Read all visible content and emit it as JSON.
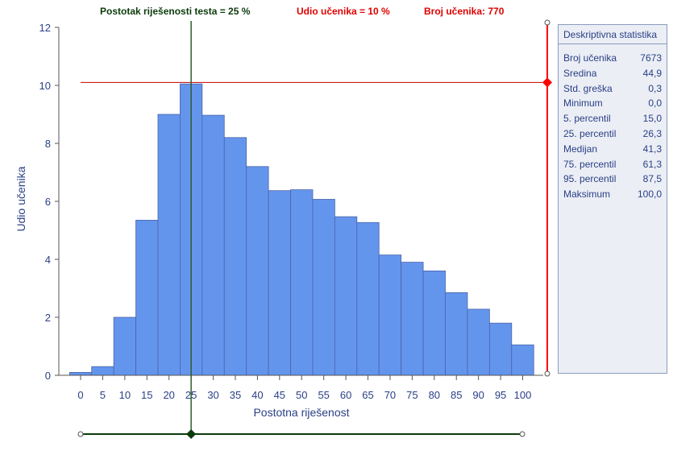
{
  "header": {
    "threshold_label": "Postotak riješenosti testa  = 25 %",
    "share_label": "Udio učenika = 10 %",
    "count_label": "Broj učenika: 770"
  },
  "stats": {
    "title": "Deskriptivna statistika",
    "rows": [
      {
        "label": "Broj učenika",
        "value": "7673"
      },
      {
        "label": "Sredina",
        "value": "44,9"
      },
      {
        "label": "Std. greška",
        "value": "0,3"
      },
      {
        "label": "Minimum",
        "value": "0,0"
      },
      {
        "label": "5. percentil",
        "value": "15,0"
      },
      {
        "label": "25. percentil",
        "value": "26,3"
      },
      {
        "label": "Medijan",
        "value": "41,3"
      },
      {
        "label": "75. percentil",
        "value": "61,3"
      },
      {
        "label": "95. percentil",
        "value": "87,5"
      },
      {
        "label": "Maksimum",
        "value": "100,0"
      }
    ]
  },
  "colors": {
    "bar_fill": "#6495ed",
    "bar_stroke": "#4a63a8",
    "axis_text": "#2a3f85",
    "vertical_marker": "#2e5e2e",
    "horizontal_marker": "#c00000",
    "slider_handle_red": "#ff0000",
    "slider_handle_green": "#0b3b0b"
  },
  "chart_data": {
    "type": "bar",
    "xlabel": "Postotna riješenost",
    "ylabel": "Udio učenika",
    "ylim": [
      0,
      12
    ],
    "yticks": [
      0,
      2,
      4,
      6,
      8,
      10,
      12
    ],
    "xticks": [
      0,
      5,
      10,
      15,
      20,
      25,
      30,
      35,
      40,
      45,
      50,
      55,
      60,
      65,
      70,
      75,
      80,
      85,
      90,
      95,
      100
    ],
    "xlim": [
      0,
      100
    ],
    "bin_width": 5,
    "bin_starts": [
      -2.5,
      2.5,
      7.5,
      12.5,
      17.5,
      22.5,
      27.5,
      32.5,
      37.5,
      42.5,
      47.5,
      52.5,
      57.5,
      62.5,
      67.5,
      72.5,
      77.5,
      82.5,
      87.5,
      92.5,
      97.5
    ],
    "values": [
      0.1,
      0.3,
      2.0,
      5.35,
      9.0,
      10.05,
      8.97,
      8.2,
      7.2,
      6.37,
      6.4,
      6.07,
      5.47,
      5.27,
      4.15,
      3.9,
      3.6,
      2.85,
      2.28,
      1.8,
      1.05
    ],
    "threshold_x": 25,
    "threshold_y": 10.1,
    "grid": false
  }
}
